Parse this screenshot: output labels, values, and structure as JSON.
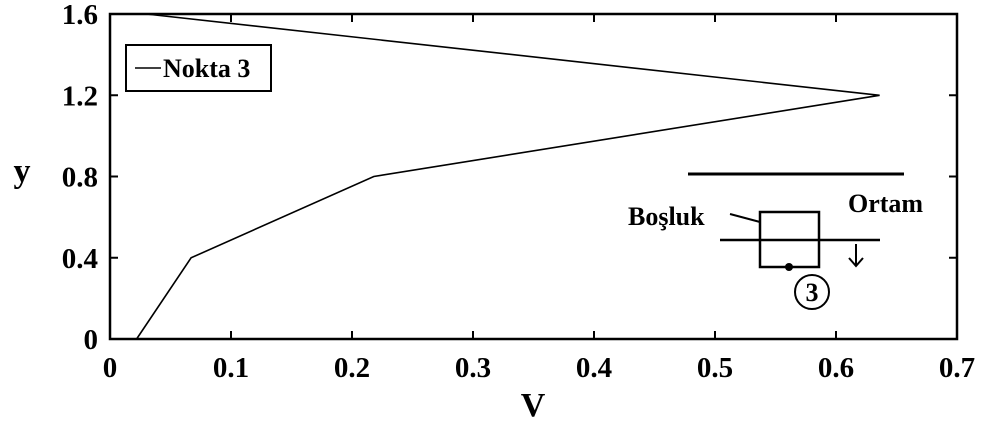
{
  "chart_data": {
    "type": "line",
    "xlabel": "V",
    "ylabel": "y",
    "xlim": [
      0,
      0.7
    ],
    "ylim": [
      0,
      1.6
    ],
    "x_ticks": [
      "0",
      "0.1",
      "0.2",
      "0.3",
      "0.4",
      "0.5",
      "0.6",
      "0.7"
    ],
    "y_ticks": [
      "0",
      "0.4",
      "0.8",
      "1.2",
      "1.6"
    ],
    "x_tick_values": [
      0,
      0.1,
      0.2,
      0.3,
      0.4,
      0.5,
      0.6,
      0.7
    ],
    "y_tick_values": [
      0,
      0.4,
      0.8,
      1.2,
      1.6
    ],
    "grid": false,
    "legend_position": "top-left",
    "series": [
      {
        "name": "Nokta 3",
        "color": "#000000",
        "x": [
          0.022,
          0.067,
          0.218,
          0.636,
          0.03
        ],
        "y": [
          0.0,
          0.4,
          0.8,
          1.2,
          1.6
        ]
      }
    ]
  },
  "inset": {
    "label_cavity": "Boşluk",
    "label_medium": "Ortam",
    "point_marker": "3"
  }
}
